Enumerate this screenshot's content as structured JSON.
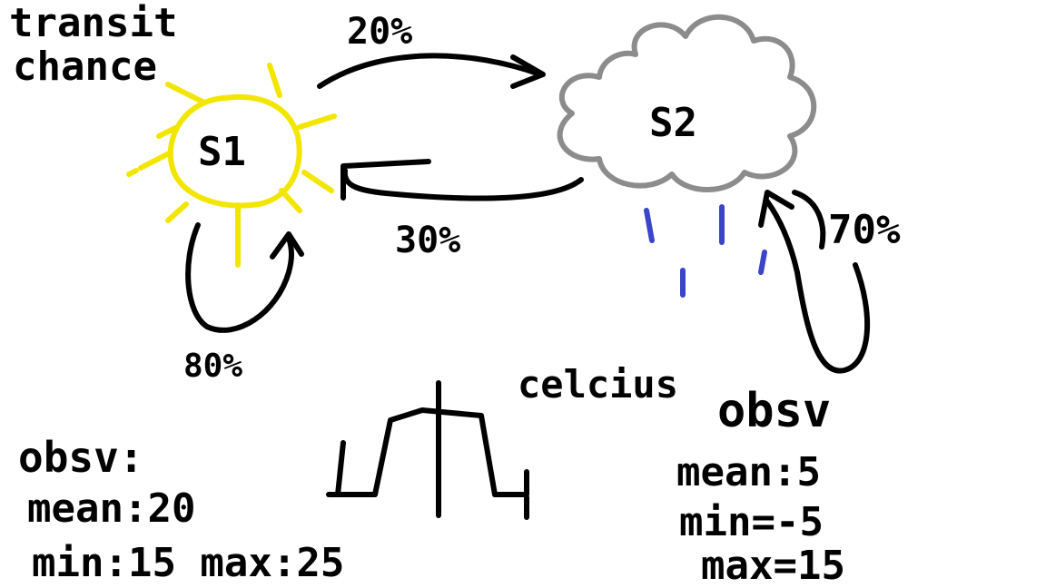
{
  "title_line1": "transit",
  "title_line2": "chance",
  "colors": {
    "sun": "#f2e600",
    "cloud": "#8c8c8c",
    "rain": "#3a45c8",
    "ink": "#000000"
  },
  "states": [
    {
      "label": "S1",
      "icon": "sun-icon"
    },
    {
      "label": "S2",
      "icon": "cloud-icon"
    }
  ],
  "transitions": {
    "s1_to_s2": "20%",
    "s2_to_s1": "30%",
    "s1_self": "80%",
    "s2_self": "70%"
  },
  "unit_label": "celcius",
  "s1_obs": {
    "heading": "obsv:",
    "mean": "mean:20",
    "range": "min:15  max:25"
  },
  "s2_obs": {
    "heading": "obsv",
    "mean": "mean:5",
    "min": "min=-5",
    "max": "max=15"
  }
}
